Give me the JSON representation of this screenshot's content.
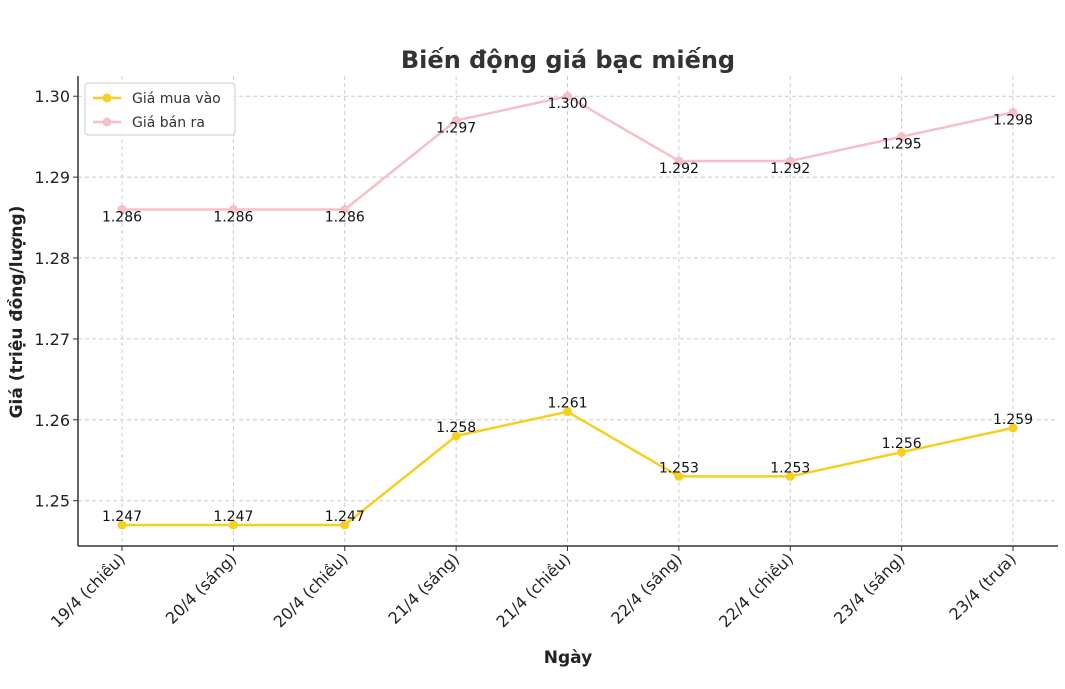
{
  "chart_data": {
    "type": "line",
    "title": "Biến động giá bạc miếng",
    "xlabel": "Ngày",
    "ylabel": "Giá (triệu đồng/lượng)",
    "categories": [
      "19/4 (chiều)",
      "20/4 (sáng)",
      "20/4 (chiều)",
      "21/4 (sáng)",
      "21/4 (chiều)",
      "22/4 (sáng)",
      "22/4 (chiều)",
      "23/4 (sáng)",
      "23/4 (trưa)"
    ],
    "series": [
      {
        "name": "Giá mua vào",
        "color": "#f5d020",
        "values": [
          1.247,
          1.247,
          1.247,
          1.258,
          1.261,
          1.253,
          1.253,
          1.256,
          1.259
        ],
        "labels": [
          "1.247",
          "1.247",
          "1.247",
          "1.258",
          "1.261",
          "1.253",
          "1.253",
          "1.256",
          "1.259"
        ]
      },
      {
        "name": "Giá bán ra",
        "color": "#f7c0c8",
        "values": [
          1.286,
          1.286,
          1.286,
          1.297,
          1.3,
          1.292,
          1.292,
          1.295,
          1.298
        ],
        "labels": [
          "1.286",
          "1.286",
          "1.286",
          "1.297",
          "1.300",
          "1.292",
          "1.292",
          "1.295",
          "1.298"
        ]
      }
    ],
    "yticks": [
      "1.25",
      "1.26",
      "1.27",
      "1.28",
      "1.29",
      "1.30"
    ],
    "ylim": [
      1.2444,
      1.3025
    ],
    "grid": true,
    "legend": "top-left"
  }
}
